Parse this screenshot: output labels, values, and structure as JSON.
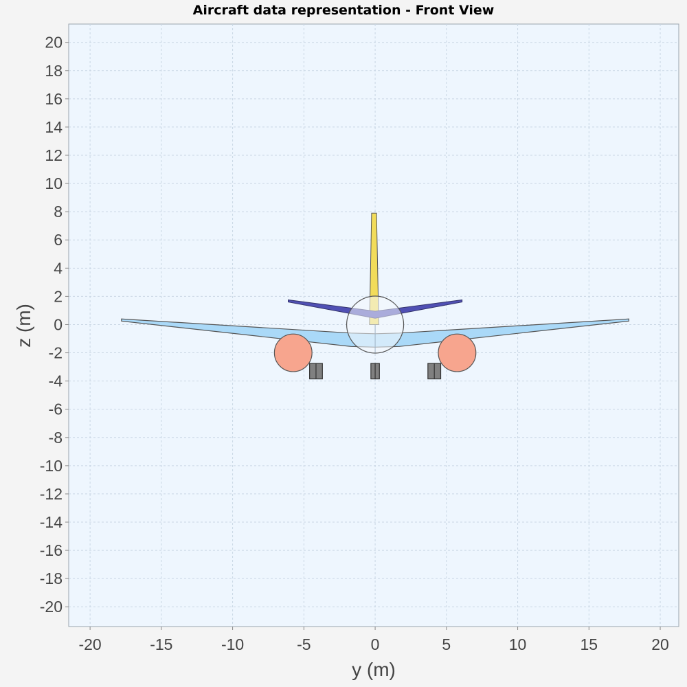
{
  "chart_data": {
    "type": "scatter",
    "title": "Aircraft data representation - Front View",
    "xlabel": "y (m)",
    "ylabel": "z (m)",
    "xlim": [
      -21.5,
      21.3
    ],
    "ylim": [
      -21.4,
      21.3
    ],
    "xticks": [
      -20,
      -15,
      -10,
      -5,
      0,
      5,
      10,
      15,
      20
    ],
    "yticks": [
      20,
      18,
      16,
      14,
      12,
      10,
      8,
      6,
      4,
      2,
      0,
      -2,
      -4,
      -6,
      -8,
      -10,
      -12,
      -14,
      -16,
      -18,
      -20
    ],
    "grid": true,
    "colors": {
      "background": "#f4f4f4",
      "plot_area": "#eef6fe",
      "grid": "#c9d6e4",
      "wing": "#aad9f8",
      "horizontal_tail": "#5050b4",
      "vertical_tail": "#f2dc5a",
      "fuselage": "#f4f8fc",
      "nacelle": "#f7a58e",
      "landing_gear": "#808080",
      "outline": "#555555"
    },
    "components": {
      "wing": [
        [
          -17.8,
          0.4
        ],
        [
          -17.8,
          0.25
        ],
        [
          -1.7,
          -1.55
        ],
        [
          0,
          -1.6
        ],
        [
          1.7,
          -1.55
        ],
        [
          17.8,
          0.25
        ],
        [
          17.8,
          0.4
        ],
        [
          1.7,
          -0.6
        ],
        [
          0,
          -0.65
        ],
        [
          -1.7,
          -0.6
        ]
      ],
      "horizontal_tail": [
        [
          -6.1,
          1.75
        ],
        [
          -6.1,
          1.6
        ],
        [
          0,
          0.45
        ],
        [
          6.1,
          1.6
        ],
        [
          6.1,
          1.75
        ],
        [
          0,
          0.95
        ]
      ],
      "vertical_tail": [
        [
          -0.25,
          7.9
        ],
        [
          0.1,
          7.9
        ],
        [
          0.25,
          0
        ],
        [
          -0.4,
          0
        ]
      ],
      "fuselage": {
        "center": [
          0,
          0
        ],
        "radius": 2.0
      },
      "nacelles": [
        {
          "center": [
            -5.75,
            -2.0
          ],
          "radius": 1.32
        },
        {
          "center": [
            5.75,
            -2.0
          ],
          "radius": 1.32
        }
      ],
      "landing_gear": [
        {
          "y_min": -4.6,
          "y_max": -3.7,
          "z_min": -3.85,
          "z_max": -2.75
        },
        {
          "y_min": 3.7,
          "y_max": 4.6,
          "z_min": -3.85,
          "z_max": -2.75
        },
        {
          "y_min": -0.3,
          "y_max": 0.3,
          "z_min": -3.85,
          "z_max": -2.75
        }
      ]
    }
  }
}
